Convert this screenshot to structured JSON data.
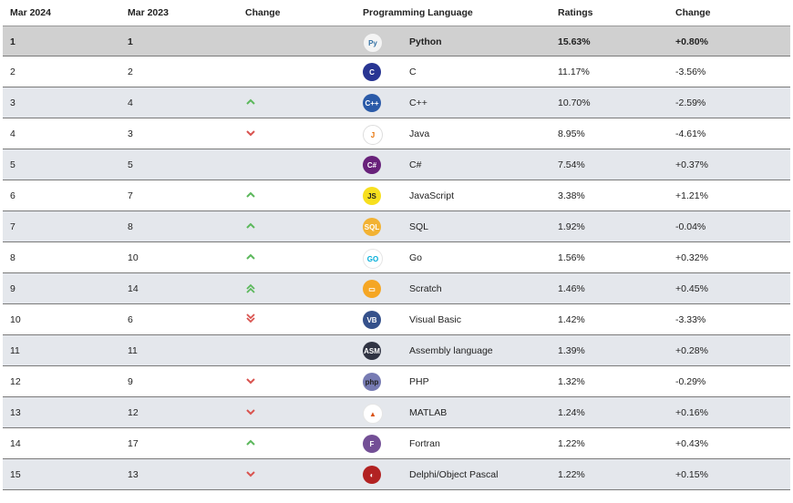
{
  "header": {
    "cur": "Mar 2024",
    "prev": "Mar 2023",
    "change": "Change",
    "lang": "Programming Language",
    "ratings": "Ratings",
    "rchange": "Change"
  },
  "colors": {
    "up": "#5cb85c",
    "down": "#d9534f"
  },
  "rows": [
    {
      "cur": "1",
      "prev": "1",
      "trend": "none",
      "logo": "python-logo",
      "name": "Python",
      "rating": "15.63%",
      "rchange": "+0.80%"
    },
    {
      "cur": "2",
      "prev": "2",
      "trend": "none",
      "logo": "c-logo",
      "name": "C",
      "rating": "11.17%",
      "rchange": "-3.56%"
    },
    {
      "cur": "3",
      "prev": "4",
      "trend": "up",
      "logo": "cpp-logo",
      "name": "C++",
      "rating": "10.70%",
      "rchange": "-2.59%"
    },
    {
      "cur": "4",
      "prev": "3",
      "trend": "down",
      "logo": "java-logo",
      "name": "Java",
      "rating": "8.95%",
      "rchange": "-4.61%"
    },
    {
      "cur": "5",
      "prev": "5",
      "trend": "none",
      "logo": "csharp-logo",
      "name": "C#",
      "rating": "7.54%",
      "rchange": "+0.37%"
    },
    {
      "cur": "6",
      "prev": "7",
      "trend": "up",
      "logo": "javascript-logo",
      "name": "JavaScript",
      "rating": "3.38%",
      "rchange": "+1.21%"
    },
    {
      "cur": "7",
      "prev": "8",
      "trend": "up",
      "logo": "sql-logo",
      "name": "SQL",
      "rating": "1.92%",
      "rchange": "-0.04%"
    },
    {
      "cur": "8",
      "prev": "10",
      "trend": "up",
      "logo": "go-logo",
      "name": "Go",
      "rating": "1.56%",
      "rchange": "+0.32%"
    },
    {
      "cur": "9",
      "prev": "14",
      "trend": "up2",
      "logo": "scratch-logo",
      "name": "Scratch",
      "rating": "1.46%",
      "rchange": "+0.45%"
    },
    {
      "cur": "10",
      "prev": "6",
      "trend": "down2",
      "logo": "visual-basic-logo",
      "name": "Visual Basic",
      "rating": "1.42%",
      "rchange": "-3.33%"
    },
    {
      "cur": "11",
      "prev": "11",
      "trend": "none",
      "logo": "assembly-logo",
      "name": "Assembly language",
      "rating": "1.39%",
      "rchange": "+0.28%"
    },
    {
      "cur": "12",
      "prev": "9",
      "trend": "down",
      "logo": "php-logo",
      "name": "PHP",
      "rating": "1.32%",
      "rchange": "-0.29%"
    },
    {
      "cur": "13",
      "prev": "12",
      "trend": "down",
      "logo": "matlab-logo",
      "name": "MATLAB",
      "rating": "1.24%",
      "rchange": "+0.16%"
    },
    {
      "cur": "14",
      "prev": "17",
      "trend": "up",
      "logo": "fortran-logo",
      "name": "Fortran",
      "rating": "1.22%",
      "rchange": "+0.43%"
    },
    {
      "cur": "15",
      "prev": "13",
      "trend": "down",
      "logo": "delphi-logo",
      "name": "Delphi/Object Pascal",
      "rating": "1.22%",
      "rchange": "+0.15%"
    }
  ]
}
